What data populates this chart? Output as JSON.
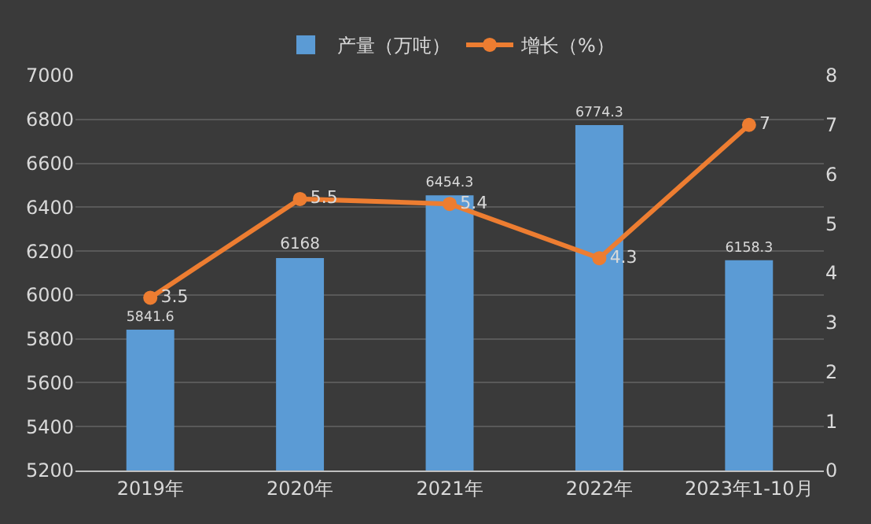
{
  "chart_data": {
    "type": "bar",
    "categories": [
      "2019年",
      "2020年",
      "2021年",
      "2022年",
      "2023年1-10月"
    ],
    "series": [
      {
        "name": "产量（万吨）",
        "color": "#5b9bd5",
        "values": [
          5841.6,
          6168,
          6454.3,
          6774.3,
          6158.3
        ]
      },
      {
        "name": "增长（%）",
        "type": "line",
        "axis": "y2",
        "color": "#ed7d31",
        "values": [
          3.5,
          5.5,
          5.4,
          4.3,
          7
        ]
      }
    ],
    "ylim": [
      5200,
      7000
    ],
    "yticks": [
      5200,
      5400,
      5600,
      5800,
      6000,
      6200,
      6400,
      6600,
      6800,
      7000
    ],
    "y2lim": [
      0,
      8
    ],
    "y2ticks": [
      0,
      1,
      2,
      3,
      4,
      5,
      6,
      7,
      8
    ],
    "grid": "y",
    "legend": "top",
    "marker": "circle",
    "line_style": "solid",
    "data_labels": true
  }
}
